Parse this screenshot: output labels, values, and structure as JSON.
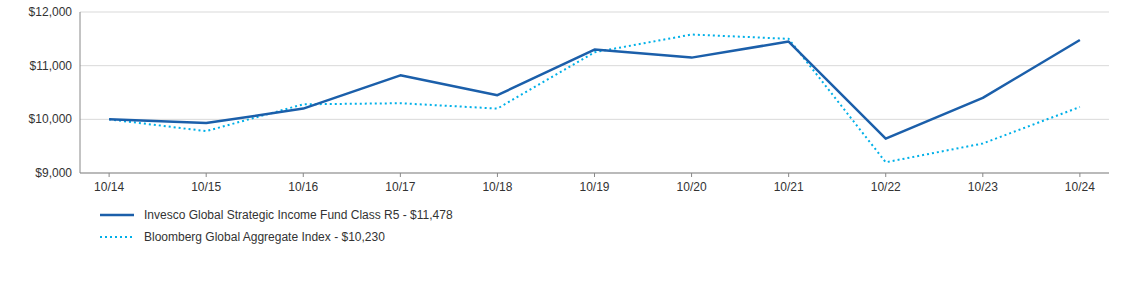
{
  "chart_data": {
    "type": "line",
    "categories": [
      "10/14",
      "10/15",
      "10/16",
      "10/17",
      "10/18",
      "10/19",
      "10/20",
      "10/21",
      "10/22",
      "10/23",
      "10/24"
    ],
    "series": [
      {
        "name": "Invesco Global Strategic Income Fund Class R5 - $11,478",
        "color": "#1B5FAA",
        "line_style": "solid",
        "values": [
          10000,
          9930,
          10200,
          10820,
          10450,
          11300,
          11150,
          11450,
          9640,
          10400,
          11478
        ]
      },
      {
        "name": "Bloomberg Global Aggregate Index - $10,230",
        "color": "#00B0E8",
        "line_style": "dotted",
        "values": [
          10000,
          9780,
          10280,
          10300,
          10200,
          11250,
          11580,
          11500,
          9200,
          9550,
          10230
        ]
      }
    ],
    "ylim": [
      9000,
      12000
    ],
    "yticks": [
      {
        "value": 9000,
        "label": "$9,000"
      },
      {
        "value": 10000,
        "label": "$10,000"
      },
      {
        "value": 11000,
        "label": "$11,000"
      },
      {
        "value": 12000,
        "label": "$12,000"
      }
    ],
    "grid": true,
    "legend": "bottom-left"
  }
}
